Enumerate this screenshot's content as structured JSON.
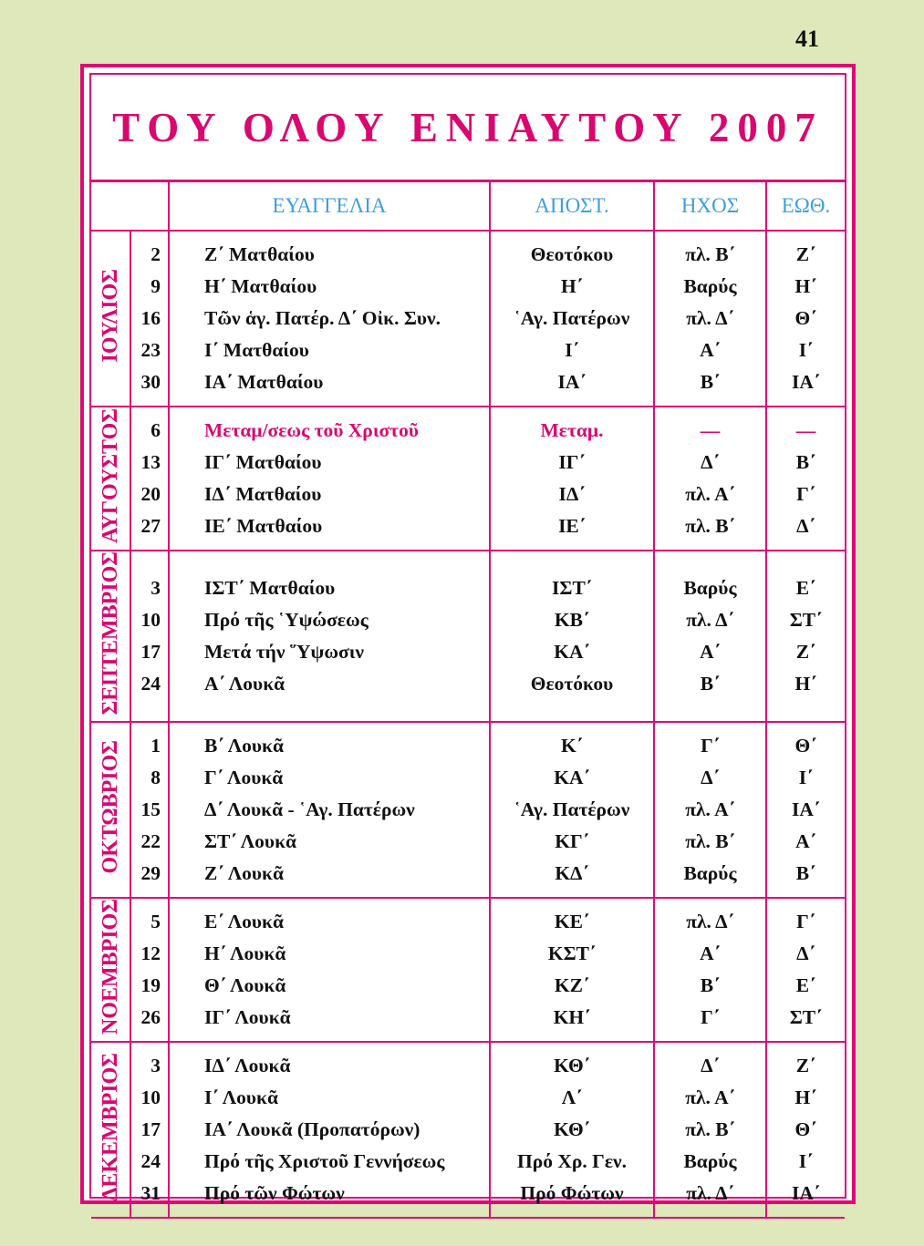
{
  "page_number": "41",
  "title": "ΤΟΥ ΟΛΟΥ ΕΝΙΑΥΤΟΥ 2007",
  "colors": {
    "accent": "#dc0a78",
    "header": "#3e9ee0",
    "background": "#dfe8bb"
  },
  "headers": [
    "ΕΥΑΓΓΕΛΙΑ",
    "ΑΠΟΣΤ.",
    "ΗΧΟΣ",
    "ΕΩΘ."
  ],
  "months": [
    {
      "name": "ΙΟΥΛΙΟΣ",
      "rows": [
        {
          "day": "2",
          "gospel": "Ζ΄ Ματθαίου",
          "apostle": "Θεοτόκου",
          "echos": "πλ. Β΄",
          "eothinon": "Ζ΄"
        },
        {
          "day": "9",
          "gospel": "Η΄ Ματθαίου",
          "apostle": "Η΄",
          "echos": "Βαρύς",
          "eothinon": "Η΄"
        },
        {
          "day": "16",
          "gospel": "Τῶν ἁγ. Πατέρ. Δ΄ Οἰκ. Συν.",
          "apostle": "῾Αγ.  Πατέρων",
          "echos": "πλ. Δ΄",
          "eothinon": "Θ΄"
        },
        {
          "day": "23",
          "gospel": "Ι΄ Ματθαίου",
          "apostle": "Ι΄",
          "echos": "Α΄",
          "eothinon": "Ι΄"
        },
        {
          "day": "30",
          "gospel": "ΙΑ΄ Ματθαίου",
          "apostle": "ΙΑ΄",
          "echos": "Β΄",
          "eothinon": "ΙΑ΄"
        }
      ]
    },
    {
      "name": "ΑΥΓΟΥΣΤΟΣ",
      "rows": [
        {
          "day": "6",
          "gospel": "Μεταμ/σεως τοῦ Χριστοῦ",
          "apostle": "Μεταμ.",
          "echos": "—",
          "eothinon": "—",
          "highlight": true
        },
        {
          "day": "13",
          "gospel": "ΙΓ΄ Ματθαίου",
          "apostle": "ΙΓ΄",
          "echos": "Δ΄",
          "eothinon": "Β΄"
        },
        {
          "day": "20",
          "gospel": "ΙΔ΄ Ματθαίου",
          "apostle": "ΙΔ΄",
          "echos": "πλ. Α΄",
          "eothinon": "Γ΄"
        },
        {
          "day": "27",
          "gospel": "ΙΕ΄ Ματθαίου",
          "apostle": "ΙΕ΄",
          "echos": "πλ. Β΄",
          "eothinon": "Δ΄"
        }
      ]
    },
    {
      "name": "ΣΕΠΤΕΜΒΡΙΟΣ",
      "rows": [
        {
          "day": "3",
          "gospel": "ΙΣΤ΄ Ματθαίου",
          "apostle": "ΙΣΤ΄",
          "echos": "Βαρύς",
          "eothinon": "Ε΄"
        },
        {
          "day": "10",
          "gospel": "Πρό τῆς ῾Υψώσεως",
          "apostle": "ΚΒ΄",
          "echos": "πλ. Δ΄",
          "eothinon": "ΣΤ΄"
        },
        {
          "day": "17",
          "gospel": "Μετά τήν ῞Υψωσιν",
          "apostle": "ΚΑ΄",
          "echos": "Α΄",
          "eothinon": "Ζ΄"
        },
        {
          "day": "24",
          "gospel": "Α΄ Λουκᾶ",
          "apostle": "Θεοτόκου",
          "echos": "Β΄",
          "eothinon": "Η΄"
        }
      ]
    },
    {
      "name": "ΟΚΤΩΒΡΙΟΣ",
      "rows": [
        {
          "day": "1",
          "gospel": "Β΄ Λουκᾶ",
          "apostle": "Κ΄",
          "echos": "Γ΄",
          "eothinon": "Θ΄"
        },
        {
          "day": "8",
          "gospel": "Γ΄ Λουκᾶ",
          "apostle": "ΚΑ΄",
          "echos": "Δ΄",
          "eothinon": "Ι΄"
        },
        {
          "day": "15",
          "gospel": "Δ΄ Λουκᾶ - ῾Αγ. Πατέρων",
          "apostle": "῾Αγ.  Πατέρων",
          "echos": "πλ. Α΄",
          "eothinon": "ΙΑ΄"
        },
        {
          "day": "22",
          "gospel": "ΣΤ΄ Λουκᾶ",
          "apostle": "ΚΓ΄",
          "echos": "πλ. Β΄",
          "eothinon": "Α΄"
        },
        {
          "day": "29",
          "gospel": "Ζ΄ Λουκᾶ",
          "apostle": "ΚΔ΄",
          "echos": "Βαρύς",
          "eothinon": "Β΄"
        }
      ]
    },
    {
      "name": "ΝΟΕΜΒΡΙΟΣ",
      "rows": [
        {
          "day": "5",
          "gospel": "Ε΄ Λουκᾶ",
          "apostle": "ΚΕ΄",
          "echos": "πλ. Δ΄",
          "eothinon": "Γ΄"
        },
        {
          "day": "12",
          "gospel": "Η΄ Λουκᾶ",
          "apostle": "ΚΣΤ΄",
          "echos": "Α΄",
          "eothinon": "Δ΄"
        },
        {
          "day": "19",
          "gospel": "Θ΄ Λουκᾶ",
          "apostle": "ΚΖ΄",
          "echos": "Β΄",
          "eothinon": "Ε΄"
        },
        {
          "day": "26",
          "gospel": "ΙΓ΄ Λουκᾶ",
          "apostle": "ΚΗ΄",
          "echos": "Γ΄",
          "eothinon": "ΣΤ΄"
        }
      ]
    },
    {
      "name": "ΔΕΚΕΜΒΡΙΟΣ",
      "rows": [
        {
          "day": "3",
          "gospel": "ΙΔ΄ Λουκᾶ",
          "apostle": "ΚΘ΄",
          "echos": "Δ΄",
          "eothinon": "Ζ΄"
        },
        {
          "day": "10",
          "gospel": "Ι΄ Λουκᾶ",
          "apostle": "Λ΄",
          "echos": "πλ. Α΄",
          "eothinon": "Η΄"
        },
        {
          "day": "17",
          "gospel": "ΙΑ΄ Λουκᾶ (Προπατόρων)",
          "apostle": "ΚΘ΄",
          "echos": "πλ. Β΄",
          "eothinon": "Θ΄"
        },
        {
          "day": "24",
          "gospel": "Πρό τῆς Χριστοῦ Γεννήσεως",
          "apostle": "Πρό Χρ. Γεν.",
          "echos": "Βαρύς",
          "eothinon": "Ι΄"
        },
        {
          "day": "31",
          "gospel": "Πρό τῶν Φώτων",
          "apostle": "Πρό Φώτων",
          "echos": "πλ. Δ΄",
          "eothinon": "ΙΑ΄"
        }
      ]
    }
  ]
}
